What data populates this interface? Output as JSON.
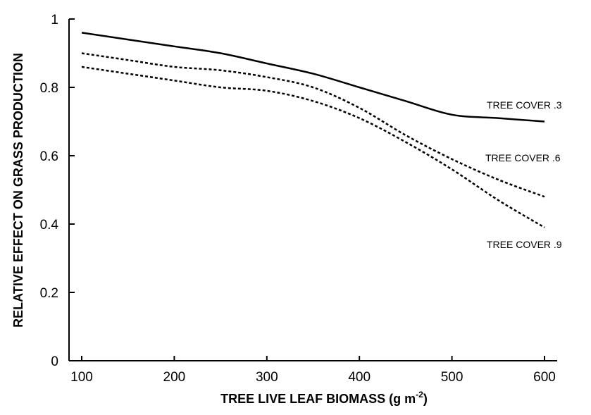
{
  "chart_data": {
    "type": "line",
    "title": "",
    "xlabel": "TREE LIVE LEAF BIOMASS (g m",
    "xlabel_sup": "-2",
    "xlabel_end": ")",
    "ylabel": "RELATIVE EFFECT ON GRASS PRODUCTION",
    "xlim": [
      90,
      610
    ],
    "ylim": [
      0,
      1
    ],
    "x_ticks": [
      100,
      200,
      300,
      400,
      500,
      600
    ],
    "y_ticks": [
      0,
      0.2,
      0.4,
      0.6,
      0.8,
      1
    ],
    "x_tick_labels": [
      "100",
      "200",
      "300",
      "400",
      "500",
      "600"
    ],
    "y_tick_labels": [
      "0",
      "0.2",
      "0.4",
      "0.6",
      "0.8",
      "1"
    ],
    "grid": false,
    "series": [
      {
        "name": "TREE COVER .3",
        "style": "solid",
        "x": [
          100,
          150,
          200,
          250,
          300,
          350,
          400,
          450,
          500,
          550,
          600
        ],
        "y": [
          0.96,
          0.94,
          0.92,
          0.9,
          0.87,
          0.84,
          0.8,
          0.76,
          0.72,
          0.71,
          0.7
        ]
      },
      {
        "name": "TREE COVER .6",
        "style": "dotted",
        "x": [
          100,
          150,
          200,
          250,
          300,
          350,
          400,
          450,
          500,
          550,
          600
        ],
        "y": [
          0.9,
          0.88,
          0.86,
          0.85,
          0.83,
          0.8,
          0.74,
          0.66,
          0.59,
          0.53,
          0.48
        ]
      },
      {
        "name": "TREE COVER .9",
        "style": "dotted",
        "x": [
          100,
          150,
          200,
          250,
          300,
          350,
          400,
          450,
          500,
          550,
          600
        ],
        "y": [
          0.86,
          0.84,
          0.82,
          0.8,
          0.79,
          0.76,
          0.71,
          0.64,
          0.56,
          0.47,
          0.39
        ]
      }
    ]
  }
}
